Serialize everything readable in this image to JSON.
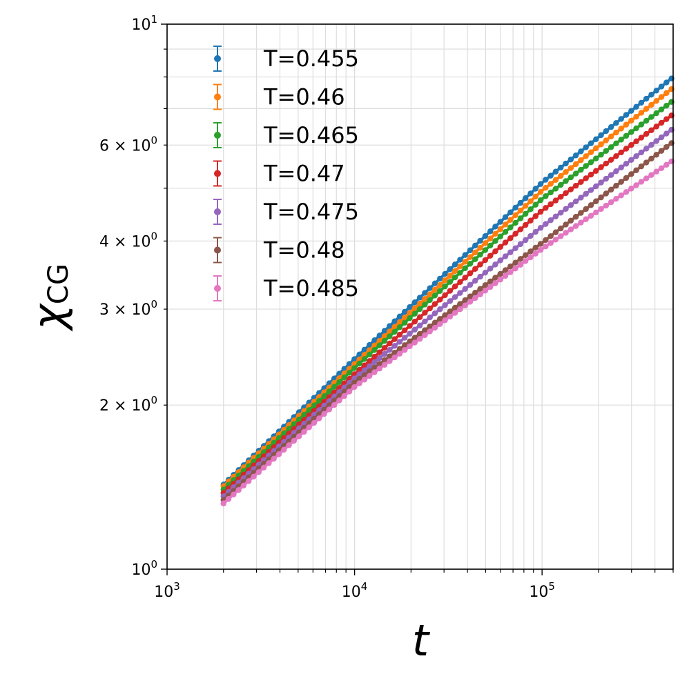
{
  "chart_data": {
    "type": "scatter",
    "title": "",
    "xlabel": "t",
    "ylabel": {
      "symbol": "χ",
      "subscript": "CG"
    },
    "x_scale": "log",
    "y_scale": "log",
    "xlim": [
      1000,
      500000
    ],
    "ylim": [
      1,
      10
    ],
    "grid": true,
    "legend_position": "top-left",
    "x_ticks": [
      {
        "value": 1000,
        "base": "10",
        "exp": "3"
      },
      {
        "value": 10000,
        "base": "10",
        "exp": "4"
      },
      {
        "value": 100000,
        "base": "10",
        "exp": "5"
      }
    ],
    "y_ticks": [
      {
        "value": 1,
        "base": "10",
        "exp": "0"
      },
      {
        "value": 10,
        "base": "10",
        "exp": "1"
      }
    ],
    "y_minor_labels": [
      {
        "value": 2,
        "mantissa": "2 × 10",
        "exp": "0"
      },
      {
        "value": 3,
        "mantissa": "3 × 10",
        "exp": "0"
      },
      {
        "value": 4,
        "mantissa": "4 × 10",
        "exp": "0"
      },
      {
        "value": 6,
        "mantissa": "6 × 10",
        "exp": "0"
      }
    ],
    "x_range": [
      2000,
      490000
    ],
    "series": [
      {
        "name": "T=0.455",
        "color": "#1f77b4",
        "y_anchors": [
          [
            2000,
            1.43
          ],
          [
            10000,
            2.43
          ],
          [
            100000,
            5.12
          ],
          [
            490000,
            7.95
          ]
        ]
      },
      {
        "name": "T=0.46",
        "color": "#ff7f0e",
        "y_anchors": [
          [
            2000,
            1.42
          ],
          [
            10000,
            2.38
          ],
          [
            100000,
            4.95
          ],
          [
            490000,
            7.6
          ]
        ]
      },
      {
        "name": "T=0.465",
        "color": "#2ca02c",
        "y_anchors": [
          [
            2000,
            1.4
          ],
          [
            10000,
            2.34
          ],
          [
            100000,
            4.78
          ],
          [
            490000,
            7.2
          ]
        ]
      },
      {
        "name": "T=0.47",
        "color": "#d62728",
        "y_anchors": [
          [
            2000,
            1.38
          ],
          [
            10000,
            2.28
          ],
          [
            100000,
            4.55
          ],
          [
            490000,
            6.8
          ]
        ]
      },
      {
        "name": "T=0.475",
        "color": "#9467bd",
        "y_anchors": [
          [
            2000,
            1.36
          ],
          [
            10000,
            2.24
          ],
          [
            100000,
            4.25
          ],
          [
            490000,
            6.4
          ]
        ]
      },
      {
        "name": "T=0.48",
        "color": "#8c564b",
        "y_anchors": [
          [
            2000,
            1.34
          ],
          [
            10000,
            2.2
          ],
          [
            100000,
            3.97
          ],
          [
            490000,
            6.05
          ]
        ]
      },
      {
        "name": "T=0.485",
        "color": "#e377c2",
        "y_anchors": [
          [
            2000,
            1.32
          ],
          [
            10000,
            2.16
          ],
          [
            100000,
            3.87
          ],
          [
            490000,
            5.6
          ]
        ]
      }
    ]
  }
}
